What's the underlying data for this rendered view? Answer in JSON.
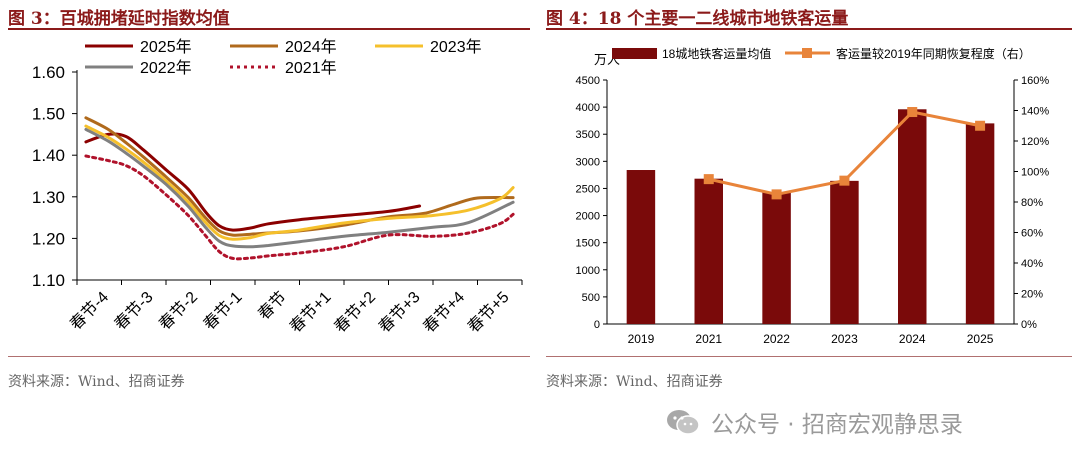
{
  "left": {
    "title": "图 3：百城拥堵延时指数均值",
    "source": "资料来源：Wind、招商证券",
    "chart_data": {
      "type": "line",
      "categories": [
        "春节-4",
        "春节-3",
        "春节-2",
        "春节-1",
        "春节",
        "春节+1",
        "春节+2",
        "春节+3",
        "春节+4",
        "春节+5"
      ],
      "y_ticks": [
        "1.10",
        "1.20",
        "1.30",
        "1.40",
        "1.50",
        "1.60"
      ],
      "ylim": [
        1.1,
        1.6
      ],
      "series": [
        {
          "name": "2025年",
          "color": "#8b0000",
          "dash": "none",
          "x": [
            -4.3,
            -3.8,
            -3.4,
            -3.0,
            -2.5,
            -2.0,
            -1.6,
            -1.3,
            -1.0,
            -0.6,
            -0.2,
            0.5,
            1.5,
            2.5,
            3.2
          ],
          "y": [
            1.432,
            1.45,
            1.445,
            1.412,
            1.365,
            1.318,
            1.262,
            1.23,
            1.22,
            1.225,
            1.235,
            1.245,
            1.255,
            1.265,
            1.278
          ]
        },
        {
          "name": "2024年",
          "color": "#b06a1c",
          "dash": "none",
          "x": [
            -4.3,
            -3.8,
            -3.4,
            -3.0,
            -2.5,
            -2.0,
            -1.6,
            -1.3,
            -1.0,
            -0.6,
            -0.2,
            0.5,
            1.5,
            2.5,
            3.3,
            4.0,
            4.5,
            5.3
          ],
          "y": [
            1.49,
            1.462,
            1.43,
            1.395,
            1.348,
            1.298,
            1.248,
            1.218,
            1.208,
            1.21,
            1.213,
            1.218,
            1.232,
            1.252,
            1.26,
            1.283,
            1.297,
            1.298
          ]
        },
        {
          "name": "2023年",
          "color": "#f5c02c",
          "dash": "none",
          "x": [
            -4.3,
            -3.8,
            -3.4,
            -3.0,
            -2.5,
            -2.0,
            -1.6,
            -1.3,
            -1.0,
            -0.6,
            -0.2,
            0.5,
            1.5,
            2.5,
            3.5,
            4.3,
            5.0,
            5.3
          ],
          "y": [
            1.47,
            1.443,
            1.415,
            1.383,
            1.338,
            1.287,
            1.237,
            1.207,
            1.198,
            1.202,
            1.212,
            1.22,
            1.237,
            1.248,
            1.255,
            1.268,
            1.295,
            1.322
          ]
        },
        {
          "name": "2022年",
          "color": "#808080",
          "dash": "none",
          "x": [
            -4.3,
            -3.8,
            -3.4,
            -3.0,
            -2.5,
            -2.0,
            -1.6,
            -1.3,
            -1.0,
            -0.6,
            -0.2,
            0.5,
            1.5,
            2.5,
            3.5,
            4.3,
            5.3
          ],
          "y": [
            1.462,
            1.434,
            1.405,
            1.373,
            1.33,
            1.277,
            1.225,
            1.193,
            1.182,
            1.18,
            1.183,
            1.192,
            1.205,
            1.215,
            1.227,
            1.238,
            1.287
          ]
        },
        {
          "name": "2021年",
          "color": "#b0122b",
          "dash": "3,4",
          "x": [
            -4.3,
            -3.8,
            -3.4,
            -3.0,
            -2.5,
            -2.0,
            -1.6,
            -1.3,
            -1.0,
            -0.6,
            -0.2,
            0.5,
            1.5,
            2.5,
            3.5,
            4.3,
            5.0,
            5.3
          ],
          "y": [
            1.398,
            1.387,
            1.375,
            1.35,
            1.305,
            1.255,
            1.205,
            1.168,
            1.152,
            1.153,
            1.158,
            1.165,
            1.18,
            1.208,
            1.205,
            1.213,
            1.235,
            1.258
          ]
        }
      ]
    }
  },
  "right": {
    "title": "图 4：18 个主要一二线城市地铁客运量",
    "source": "资料来源：Wind、招商证券",
    "chart_data": {
      "type": "bar",
      "categories": [
        "2019",
        "2021",
        "2022",
        "2023",
        "2024",
        "2025"
      ],
      "y_unit": "万人",
      "y_ticks": [
        "0",
        "500",
        "1000",
        "1500",
        "2000",
        "2500",
        "3000",
        "3500",
        "4000",
        "4500"
      ],
      "ylim": [
        0,
        4500
      ],
      "y2_ticks": [
        "0%",
        "20%",
        "40%",
        "60%",
        "80%",
        "100%",
        "120%",
        "140%",
        "160%"
      ],
      "y2lim": [
        0,
        160
      ],
      "series": [
        {
          "name": "18城地铁客运量均值",
          "type": "bar",
          "color": "#7a0a0a",
          "values": [
            2840,
            2680,
            2430,
            2640,
            3960,
            3700
          ]
        },
        {
          "name": "客运量较2019年同期恢复程度（右）",
          "type": "line",
          "axis": "right",
          "color": "#e8843a",
          "values": [
            null,
            95,
            85,
            94,
            139,
            130
          ]
        }
      ]
    }
  },
  "watermark": {
    "text": "公众号 · 招商宏观静思录"
  }
}
